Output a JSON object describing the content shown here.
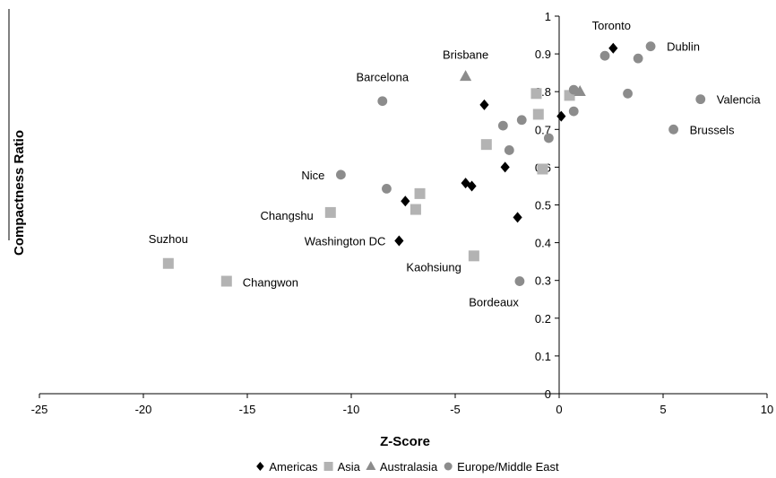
{
  "chart_data": {
    "type": "scatter",
    "xlabel": "Z-Score",
    "ylabel": "Compactness Ratio",
    "xlim": [
      -25,
      10
    ],
    "ylim": [
      0,
      1
    ],
    "x_ticks": [
      -25,
      -20,
      -15,
      -10,
      -5,
      0,
      5,
      10
    ],
    "y_ticks": [
      0,
      0.1,
      0.2,
      0.3,
      0.4,
      0.5,
      0.6,
      0.7,
      0.8,
      0.9,
      1
    ],
    "grid": false,
    "legend_position": "bottom",
    "series": [
      {
        "name": "Americas",
        "marker": "diamond",
        "color": "#000000",
        "points": [
          {
            "x": 2.6,
            "y": 0.915,
            "label": "Toronto"
          },
          {
            "x": -3.6,
            "y": 0.765
          },
          {
            "x": 0.1,
            "y": 0.735
          },
          {
            "x": -2.6,
            "y": 0.6
          },
          {
            "x": -4.5,
            "y": 0.558
          },
          {
            "x": -4.2,
            "y": 0.55
          },
          {
            "x": -7.4,
            "y": 0.51
          },
          {
            "x": -2.0,
            "y": 0.467
          },
          {
            "x": -7.7,
            "y": 0.405,
            "label": "Washington DC"
          }
        ]
      },
      {
        "name": "Asia",
        "marker": "square",
        "color": "#b3b3b3",
        "points": [
          {
            "x": 0.5,
            "y": 0.79
          },
          {
            "x": -1.1,
            "y": 0.795
          },
          {
            "x": -1.0,
            "y": 0.74
          },
          {
            "x": -3.5,
            "y": 0.66
          },
          {
            "x": -0.8,
            "y": 0.595
          },
          {
            "x": -6.7,
            "y": 0.53
          },
          {
            "x": -6.9,
            "y": 0.488
          },
          {
            "x": -11.0,
            "y": 0.48,
            "label": "Changshu"
          },
          {
            "x": -4.1,
            "y": 0.365,
            "label": "Kaohsiung"
          },
          {
            "x": -18.8,
            "y": 0.345,
            "label": "Suzhou"
          },
          {
            "x": -16.0,
            "y": 0.298,
            "label": "Changwon"
          }
        ]
      },
      {
        "name": "Australasia",
        "marker": "triangle",
        "color": "#8c8c8c",
        "points": [
          {
            "x": -4.5,
            "y": 0.84,
            "label": "Brisbane"
          },
          {
            "x": 1.0,
            "y": 0.8
          }
        ]
      },
      {
        "name": "Europe/Middle East",
        "marker": "circle",
        "color": "#8c8c8c",
        "points": [
          {
            "x": 4.4,
            "y": 0.92,
            "label": "Dublin"
          },
          {
            "x": 2.2,
            "y": 0.895
          },
          {
            "x": 3.8,
            "y": 0.888
          },
          {
            "x": 0.7,
            "y": 0.805
          },
          {
            "x": 3.3,
            "y": 0.795
          },
          {
            "x": 6.8,
            "y": 0.78,
            "label": "Valencia"
          },
          {
            "x": -8.5,
            "y": 0.775,
            "label": "Barcelona"
          },
          {
            "x": 0.7,
            "y": 0.748
          },
          {
            "x": -1.8,
            "y": 0.725
          },
          {
            "x": -2.7,
            "y": 0.71
          },
          {
            "x": 5.5,
            "y": 0.7,
            "label": "Brussels"
          },
          {
            "x": -0.5,
            "y": 0.677
          },
          {
            "x": -2.4,
            "y": 0.645
          },
          {
            "x": -10.5,
            "y": 0.58,
            "label": "Nice"
          },
          {
            "x": -8.3,
            "y": 0.543
          },
          {
            "x": -1.9,
            "y": 0.298,
            "label": "Bordeaux"
          }
        ]
      }
    ]
  }
}
